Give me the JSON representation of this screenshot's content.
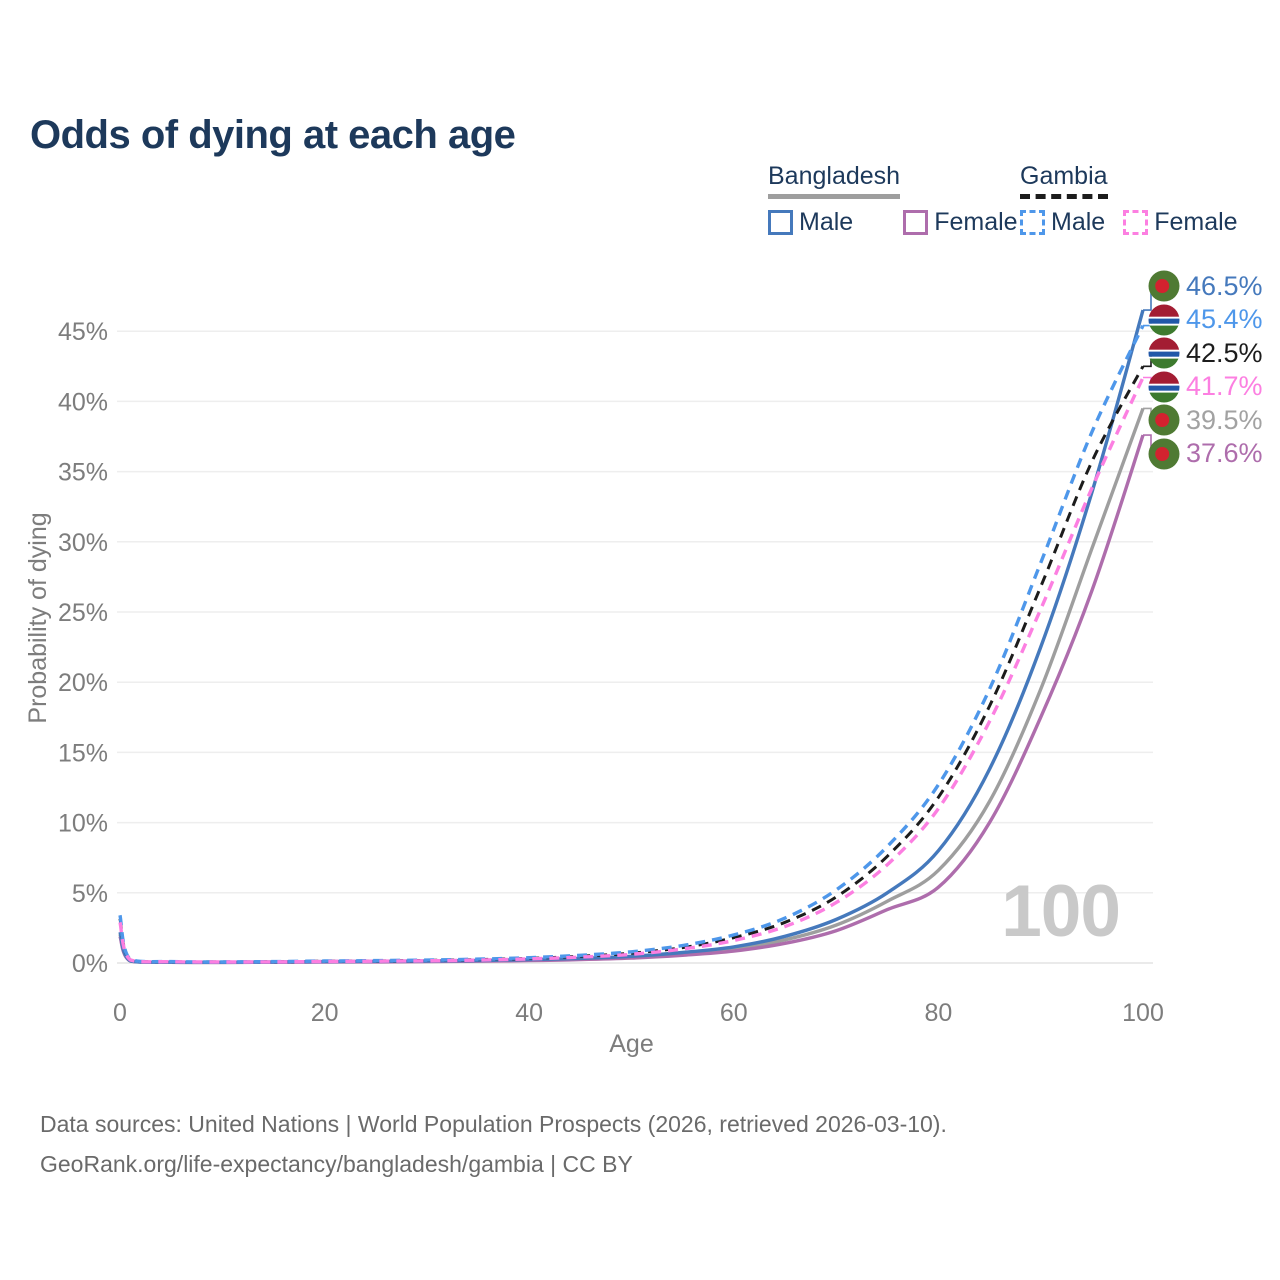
{
  "title": "Odds of dying at each age",
  "legend": {
    "groups": [
      {
        "label": "Bangladesh",
        "line_style": "solid",
        "underline_color": "#9e9e9e",
        "items": [
          {
            "label": "Male",
            "color": "#4579bc"
          },
          {
            "label": "Female",
            "color": "#ae6dac"
          }
        ]
      },
      {
        "label": "Gambia",
        "line_style": "dashed",
        "underline_color": "#1c1c1c",
        "items": [
          {
            "label": "Male",
            "color": "#4e97ea"
          },
          {
            "label": "Female",
            "color": "#fc7fe1"
          }
        ]
      }
    ]
  },
  "watermark": "100",
  "footer": {
    "line1": "Data sources: United Nations | World Population Prospects (2026, retrieved 2026-03-10).",
    "line2": "GeoRank.org/life-expectancy/bangladesh/gambia | CC BY"
  },
  "chart_data": {
    "type": "line",
    "title": "Odds of dying at each age",
    "xlabel": "Age",
    "ylabel": "Probability of dying",
    "y_unit": "percent",
    "xlim": [
      0,
      100
    ],
    "ylim": [
      0,
      48
    ],
    "grid": "horizontal",
    "legend_position": "top-right",
    "x_ticks": [
      0,
      20,
      40,
      60,
      80,
      100
    ],
    "y_ticks": [
      0,
      5,
      10,
      15,
      20,
      25,
      30,
      35,
      40,
      45
    ],
    "x": [
      0,
      1,
      5,
      10,
      15,
      20,
      25,
      30,
      35,
      40,
      45,
      50,
      55,
      60,
      65,
      70,
      75,
      80,
      85,
      90,
      95,
      100
    ],
    "series": [
      {
        "id": "bangladesh-total",
        "name": "Bangladesh (both sexes)",
        "country": "Bangladesh",
        "sex": "total",
        "color": "#9e9e9e",
        "dashed": false,
        "values": [
          2.05,
          0.15,
          0.055,
          0.045,
          0.06,
          0.085,
          0.1,
          0.12,
          0.155,
          0.2,
          0.28,
          0.42,
          0.65,
          1.0,
          1.65,
          2.7,
          4.4,
          6.6,
          11.5,
          19.5,
          29.5,
          39.5
        ]
      },
      {
        "id": "bangladesh-female",
        "name": "Bangladesh Female",
        "country": "Bangladesh",
        "sex": "female",
        "color": "#ae6dac",
        "dashed": false,
        "values": [
          1.9,
          0.14,
          0.05,
          0.04,
          0.05,
          0.07,
          0.08,
          0.1,
          0.13,
          0.17,
          0.24,
          0.35,
          0.55,
          0.85,
          1.4,
          2.3,
          3.8,
          5.4,
          10.0,
          17.5,
          26.5,
          37.6
        ]
      },
      {
        "id": "bangladesh-male",
        "name": "Bangladesh Male",
        "country": "Bangladesh",
        "sex": "male",
        "color": "#4579bc",
        "dashed": false,
        "values": [
          2.2,
          0.16,
          0.06,
          0.05,
          0.07,
          0.1,
          0.12,
          0.14,
          0.18,
          0.24,
          0.33,
          0.48,
          0.75,
          1.15,
          1.9,
          3.1,
          5.0,
          8.0,
          13.8,
          22.5,
          33.5,
          46.5
        ]
      },
      {
        "id": "gambia-total",
        "name": "Gambia (both sexes)",
        "country": "Gambia",
        "sex": "total",
        "color": "#1c1c1c",
        "dashed": true,
        "values": [
          3.15,
          0.24,
          0.095,
          0.075,
          0.09,
          0.125,
          0.15,
          0.185,
          0.245,
          0.33,
          0.48,
          0.7,
          1.1,
          1.8,
          2.9,
          4.7,
          7.6,
          11.8,
          18.3,
          26.8,
          35.7,
          42.5
        ]
      },
      {
        "id": "gambia-male",
        "name": "Gambia Male",
        "country": "Gambia",
        "sex": "male",
        "color": "#4e97ea",
        "dashed": true,
        "values": [
          3.4,
          0.26,
          0.1,
          0.08,
          0.1,
          0.14,
          0.17,
          0.21,
          0.28,
          0.38,
          0.55,
          0.8,
          1.25,
          2.0,
          3.2,
          5.2,
          8.3,
          12.7,
          19.5,
          28.5,
          37.8,
          45.4
        ]
      },
      {
        "id": "gambia-female",
        "name": "Gambia Female",
        "country": "Gambia",
        "sex": "female",
        "color": "#fc7fe1",
        "dashed": true,
        "values": [
          2.9,
          0.22,
          0.09,
          0.07,
          0.08,
          0.11,
          0.13,
          0.16,
          0.21,
          0.29,
          0.42,
          0.62,
          1.0,
          1.6,
          2.6,
          4.3,
          7.0,
          11.0,
          17.2,
          25.2,
          33.8,
          41.7
        ]
      }
    ],
    "end_labels": [
      {
        "text": "46.5%",
        "value": 46.5,
        "series": "bangladesh-male",
        "flag": "bangladesh",
        "color": "#4579bc"
      },
      {
        "text": "45.4%",
        "value": 45.4,
        "series": "gambia-male",
        "flag": "gambia",
        "color": "#4e97ea"
      },
      {
        "text": "42.5%",
        "value": 42.5,
        "series": "gambia-total",
        "flag": "gambia",
        "color": "#1c1c1c"
      },
      {
        "text": "41.7%",
        "value": 41.7,
        "series": "gambia-female",
        "flag": "gambia",
        "color": "#fc7fe1"
      },
      {
        "text": "39.5%",
        "value": 39.5,
        "series": "bangladesh-total",
        "flag": "bangladesh",
        "color": "#a2a2a2"
      },
      {
        "text": "37.6%",
        "value": 37.6,
        "series": "bangladesh-female",
        "flag": "bangladesh",
        "color": "#ae6dac"
      }
    ],
    "flag_colors": {
      "bangladesh": {
        "field": "#4f7a33",
        "disc": "#d3222f"
      },
      "gambia": {
        "red": "#a31d33",
        "white": "#ffffff",
        "blue": "#2158a8",
        "green": "#3d7a2e"
      }
    }
  }
}
